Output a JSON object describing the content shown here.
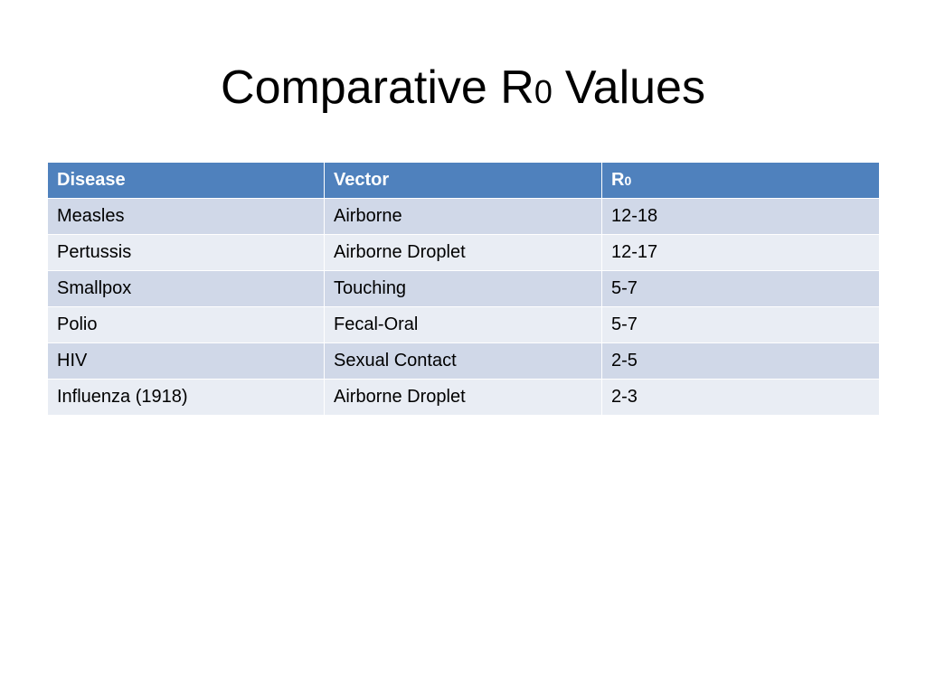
{
  "title": {
    "parts": [
      "Comparative R",
      "0",
      "Values"
    ]
  },
  "table": {
    "header": [
      "Disease",
      "Vector",
      [
        "R",
        "0"
      ]
    ],
    "rows": [
      [
        "Measles",
        "Airborne",
        "12-18"
      ],
      [
        "Pertussis",
        "Airborne Droplet",
        "12-17"
      ],
      [
        "Smallpox",
        "Touching",
        "5-7"
      ],
      [
        "Polio",
        "Fecal-Oral",
        "5-7"
      ],
      [
        "HIV",
        "Sexual Contact",
        "2-5"
      ],
      [
        "Influenza (1918)",
        "Airborne Droplet",
        "2-3"
      ]
    ]
  }
}
